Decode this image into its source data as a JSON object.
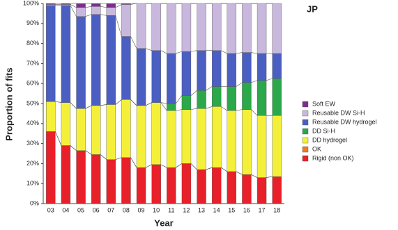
{
  "chart_data": {
    "type": "stacked-bar",
    "title": "JP",
    "x_label": "Year",
    "y_label": "Proportion of fits",
    "categories": [
      "03",
      "04",
      "05",
      "06",
      "07",
      "08",
      "09",
      "10",
      "11",
      "12",
      "13",
      "14",
      "15",
      "16",
      "17",
      "18"
    ],
    "series": [
      {
        "name": "Rigid (non OK)",
        "color": "#e8202a",
        "values": [
          36,
          29,
          26.5,
          24.5,
          22,
          23,
          18,
          19.5,
          18,
          20,
          17,
          18,
          16,
          14.5,
          13,
          13.5
        ]
      },
      {
        "name": "OK",
        "color": "#f07a22",
        "values": [
          0,
          0,
          0,
          0,
          0,
          0,
          0,
          0,
          0,
          0,
          0,
          0,
          0,
          0,
          0,
          0
        ]
      },
      {
        "name": "DD hydrogel",
        "color": "#f4f03a",
        "values": [
          15,
          21.5,
          21,
          24.5,
          27.5,
          29,
          31,
          31,
          28.5,
          27,
          30.5,
          30.5,
          30.5,
          32.5,
          31,
          30.5
        ]
      },
      {
        "name": "DD Si-H",
        "color": "#2aa84a",
        "values": [
          0,
          0,
          0,
          0,
          0,
          0,
          0,
          0,
          3.5,
          7,
          9,
          10,
          12,
          13.5,
          17.5,
          18.5
        ]
      },
      {
        "name": "Reusable DW hydrogel",
        "color": "#4a5fc1",
        "values": [
          48,
          48.5,
          46,
          45.5,
          44.5,
          31.5,
          28.5,
          26,
          25,
          22,
          20,
          18,
          16.5,
          15,
          13.5,
          12.5
        ]
      },
      {
        "name": "Reusable DW Si-H",
        "color": "#c9b8dd",
        "values": [
          0.5,
          0.5,
          4.5,
          4,
          4,
          16,
          22.5,
          23.5,
          25,
          24,
          23.5,
          23.5,
          25,
          24.5,
          25,
          25
        ]
      },
      {
        "name": "Soft EW",
        "color": "#7b2d8e",
        "values": [
          0.5,
          0.5,
          2,
          1.5,
          2,
          0.5,
          0,
          0,
          0,
          0,
          0,
          0,
          0,
          0,
          0,
          0
        ]
      }
    ],
    "ylim": [
      0,
      100
    ],
    "yticks": [
      {
        "value": 0,
        "label": "0%"
      },
      {
        "value": 10,
        "label": "10%"
      },
      {
        "value": 20,
        "label": "20%"
      },
      {
        "value": 30,
        "label": "30%"
      },
      {
        "value": 40,
        "label": "40%"
      },
      {
        "value": 50,
        "label": "50%"
      },
      {
        "value": 60,
        "label": "60%"
      },
      {
        "value": 70,
        "label": "70%"
      },
      {
        "value": 80,
        "label": "80%"
      },
      {
        "value": 90,
        "label": "90%"
      },
      {
        "value": 100,
        "label": "100%"
      }
    ],
    "legend": "right"
  }
}
